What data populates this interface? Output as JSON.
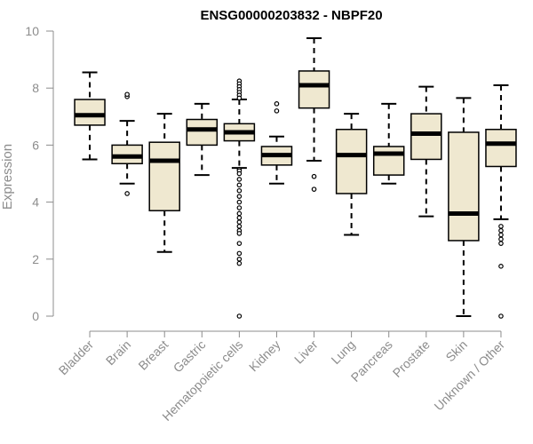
{
  "chart_data": {
    "type": "boxplot",
    "title": "ENSG00000203832 - NBPF20",
    "xlabel": "",
    "ylabel": "Expression",
    "ylim": [
      0,
      10
    ],
    "yticks": [
      "0",
      "2",
      "4",
      "6",
      "8",
      "10"
    ],
    "box_fill": "#efe8d0",
    "categories": [
      "Bladder",
      "Brain",
      "Breast",
      "Gastric",
      "Hematopoietic cells",
      "Kidney",
      "Liver",
      "Lung",
      "Pancreas",
      "Prostate",
      "Skin",
      "Unknown / Other"
    ],
    "boxes": [
      {
        "whisker_low": 5.5,
        "q1": 6.7,
        "median": 7.05,
        "q3": 7.6,
        "whisker_high": 8.55,
        "outliers": []
      },
      {
        "whisker_low": 4.65,
        "q1": 5.35,
        "median": 5.6,
        "q3": 6.0,
        "whisker_high": 6.85,
        "outliers": [
          7.7,
          7.78,
          4.3
        ]
      },
      {
        "whisker_low": 2.25,
        "q1": 3.7,
        "median": 5.45,
        "q3": 6.1,
        "whisker_high": 7.1,
        "outliers": []
      },
      {
        "whisker_low": 4.95,
        "q1": 6.0,
        "median": 6.55,
        "q3": 6.9,
        "whisker_high": 7.45,
        "outliers": []
      },
      {
        "whisker_low": 5.2,
        "q1": 6.15,
        "median": 6.45,
        "q3": 6.75,
        "whisker_high": 7.6,
        "outliers": [
          8.25,
          8.15,
          8.05,
          7.95,
          7.85,
          7.75,
          7.65,
          5.15,
          5.1,
          5.0,
          4.8,
          4.6,
          4.4,
          4.2,
          4.0,
          3.8,
          3.6,
          3.45,
          3.3,
          3.15,
          3.0,
          2.9,
          2.55,
          2.2,
          2.0,
          1.85,
          0.0
        ]
      },
      {
        "whisker_low": 4.65,
        "q1": 5.3,
        "median": 5.65,
        "q3": 5.95,
        "whisker_high": 6.3,
        "outliers": [
          7.45,
          7.2
        ]
      },
      {
        "whisker_low": 5.45,
        "q1": 7.3,
        "median": 8.1,
        "q3": 8.6,
        "whisker_high": 9.75,
        "outliers": [
          4.9,
          4.45
        ]
      },
      {
        "whisker_low": 2.85,
        "q1": 4.3,
        "median": 5.65,
        "q3": 6.55,
        "whisker_high": 7.1,
        "outliers": []
      },
      {
        "whisker_low": 4.65,
        "q1": 4.95,
        "median": 5.7,
        "q3": 5.95,
        "whisker_high": 7.45,
        "outliers": []
      },
      {
        "whisker_low": 3.5,
        "q1": 5.5,
        "median": 6.4,
        "q3": 7.1,
        "whisker_high": 8.05,
        "outliers": []
      },
      {
        "whisker_low": 0.0,
        "q1": 2.65,
        "median": 3.6,
        "q3": 6.45,
        "whisker_high": 7.65,
        "outliers": []
      },
      {
        "whisker_low": 3.4,
        "q1": 5.25,
        "median": 6.05,
        "q3": 6.55,
        "whisker_high": 8.1,
        "outliers": [
          3.15,
          3.0,
          2.85,
          2.7,
          2.55,
          1.75,
          0.0
        ]
      }
    ]
  }
}
